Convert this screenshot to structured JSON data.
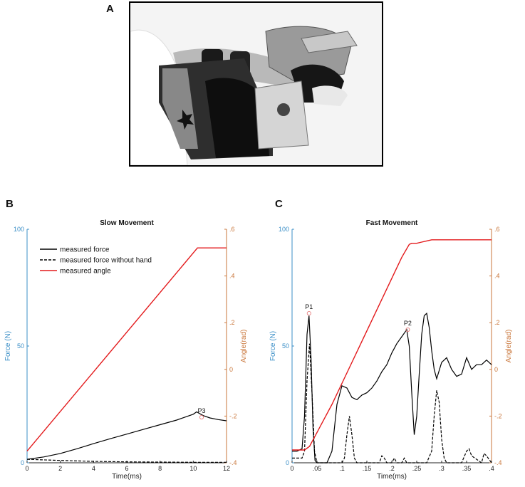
{
  "panels": {
    "a": "A",
    "b": "B",
    "c": "C"
  },
  "colors": {
    "force_axis": "#3b8fc7",
    "angle_axis": "#c9763a",
    "angle_line": "#e31a1c",
    "force_line": "#000000"
  },
  "chart_data": [
    {
      "type": "line",
      "title": "Slow Movement",
      "xlabel": "Time(ms)",
      "ylabel": "Force (N)",
      "y2label": "Angle(rad)",
      "xlim": [
        0,
        12
      ],
      "ylim": [
        0,
        100
      ],
      "y2lim": [
        -0.4,
        0.6
      ],
      "x_ticks": [
        0,
        2,
        4,
        6,
        8,
        10,
        12
      ],
      "y_ticks": [
        0,
        50,
        100
      ],
      "y2_ticks": [
        -0.4,
        -0.2,
        0,
        0.2,
        0.4,
        0.6
      ],
      "legend": "top-left",
      "grid": false,
      "series": [
        {
          "name": "measured force",
          "axis": "left",
          "style": "solid",
          "x": [
            0,
            1,
            2,
            3,
            4,
            5,
            6,
            7,
            8,
            9,
            10,
            10.2,
            10.6,
            11,
            11.5,
            12
          ],
          "y": [
            1.5,
            2.5,
            4,
            6,
            8.2,
            10.3,
            12.3,
            14.3,
            16.3,
            18.3,
            20.8,
            21.8,
            20.2,
            19.2,
            18.5,
            18
          ]
        },
        {
          "name": "measured force without hand",
          "axis": "left",
          "style": "dashed",
          "x": [
            0,
            2,
            4,
            6,
            8,
            10,
            12
          ],
          "y": [
            1.5,
            1.0,
            0.6,
            0.4,
            0.3,
            0.2,
            0.2
          ]
        },
        {
          "name": "measured angle",
          "axis": "right",
          "style": "solid",
          "x": [
            0,
            10.25,
            12
          ],
          "y": [
            -0.35,
            0.52,
            0.52
          ]
        }
      ],
      "annotations": [
        {
          "label": "P3",
          "x": 10.5,
          "y": 19.5
        }
      ]
    },
    {
      "type": "line",
      "title": "Fast Movement",
      "xlabel": "Time(ms)",
      "ylabel": "Force (N)",
      "y2label": "Angle(rad)",
      "xlim": [
        0,
        0.4
      ],
      "ylim": [
        0,
        100
      ],
      "y2lim": [
        -0.4,
        0.6
      ],
      "x_ticks": [
        0,
        0.05,
        0.1,
        0.15,
        0.2,
        0.25,
        0.3,
        0.35,
        0.4
      ],
      "y_ticks": [
        0,
        50,
        100
      ],
      "y2_ticks": [
        -0.4,
        -0.2,
        0,
        0.2,
        0.4,
        0.6
      ],
      "grid": false,
      "series": [
        {
          "name": "measured force",
          "axis": "left",
          "style": "solid",
          "x": [
            0,
            0.01,
            0.02,
            0.025,
            0.03,
            0.034,
            0.038,
            0.042,
            0.046,
            0.05,
            0.06,
            0.07,
            0.08,
            0.09,
            0.1,
            0.11,
            0.12,
            0.13,
            0.14,
            0.15,
            0.16,
            0.17,
            0.18,
            0.19,
            0.2,
            0.21,
            0.22,
            0.23,
            0.235,
            0.24,
            0.245,
            0.25,
            0.255,
            0.26,
            0.265,
            0.27,
            0.275,
            0.28,
            0.285,
            0.29,
            0.3,
            0.31,
            0.32,
            0.33,
            0.34,
            0.35,
            0.36,
            0.37,
            0.38,
            0.39,
            0.4
          ],
          "y": [
            5,
            5,
            6,
            20,
            55,
            63,
            45,
            15,
            1,
            0,
            0,
            0,
            5,
            25,
            33,
            32,
            28,
            27,
            29,
            30,
            32,
            35,
            39,
            42,
            47,
            51,
            54,
            57,
            50,
            30,
            12,
            20,
            38,
            55,
            63,
            64,
            58,
            48,
            40,
            36,
            43,
            45,
            40,
            37,
            38,
            45,
            40,
            42,
            42,
            44,
            42
          ]
        },
        {
          "name": "measured force without hand",
          "axis": "left",
          "style": "dashed",
          "x": [
            0,
            0.02,
            0.025,
            0.03,
            0.035,
            0.04,
            0.045,
            0.05,
            0.1,
            0.105,
            0.11,
            0.115,
            0.12,
            0.125,
            0.13,
            0.175,
            0.18,
            0.185,
            0.19,
            0.2,
            0.205,
            0.21,
            0.22,
            0.225,
            0.23,
            0.24,
            0.27,
            0.28,
            0.285,
            0.29,
            0.295,
            0.3,
            0.305,
            0.31,
            0.34,
            0.35,
            0.355,
            0.36,
            0.38,
            0.385,
            0.39,
            0.4
          ],
          "y": [
            2,
            2,
            5,
            35,
            51,
            30,
            5,
            0,
            0,
            2,
            12,
            20,
            12,
            2,
            0,
            0,
            3,
            2,
            0,
            0,
            2,
            0,
            0,
            2,
            0,
            0,
            0,
            5,
            20,
            31,
            26,
            10,
            2,
            0,
            0,
            5,
            6,
            3,
            0,
            4,
            3,
            0
          ]
        },
        {
          "name": "measured angle",
          "axis": "right",
          "style": "solid",
          "x": [
            0,
            0.025,
            0.035,
            0.05,
            0.065,
            0.08,
            0.1,
            0.12,
            0.14,
            0.16,
            0.18,
            0.2,
            0.22,
            0.235,
            0.24,
            0.25,
            0.26,
            0.27,
            0.28,
            0.3,
            0.35,
            0.4
          ],
          "y": [
            -0.345,
            -0.345,
            -0.33,
            -0.27,
            -0.21,
            -0.15,
            -0.06,
            0.03,
            0.12,
            0.21,
            0.3,
            0.39,
            0.48,
            0.535,
            0.54,
            0.54,
            0.545,
            0.55,
            0.555,
            0.555,
            0.555,
            0.555
          ]
        }
      ],
      "annotations": [
        {
          "label": "P1",
          "x": 0.034,
          "y": 64
        },
        {
          "label": "P2",
          "x": 0.232,
          "y": 57
        }
      ]
    }
  ]
}
